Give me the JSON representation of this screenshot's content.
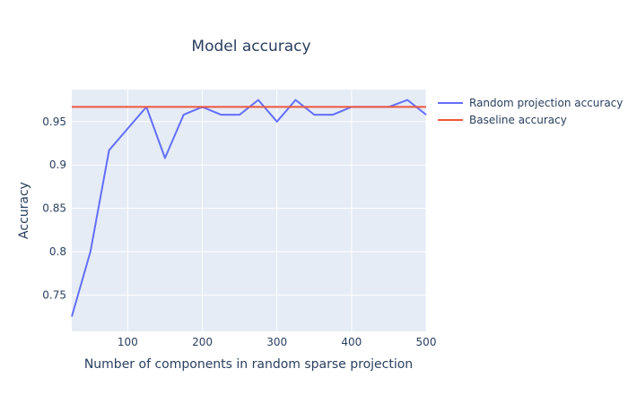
{
  "chart_data": {
    "type": "line",
    "title": "Model accuracy",
    "xlabel": "Number of components in random sparse projection",
    "ylabel": "Accuracy",
    "xlim": [
      25,
      500
    ],
    "ylim": [
      0.708,
      0.987
    ],
    "x_ticks": [
      100,
      200,
      300,
      400,
      500
    ],
    "y_ticks": [
      0.75,
      0.8,
      0.85,
      0.9,
      0.95
    ],
    "x_tick_labels": [
      "100",
      "200",
      "300",
      "400",
      "500"
    ],
    "y_tick_labels": [
      "0.75",
      "0.8",
      "0.85",
      "0.9",
      "0.95"
    ],
    "grid": true,
    "legend_position": "top-right",
    "series": [
      {
        "name": "Random projection accuracy",
        "color": "#636efa",
        "x": [
          25,
          50,
          75,
          100,
          125,
          150,
          175,
          200,
          225,
          250,
          275,
          300,
          325,
          350,
          375,
          400,
          425,
          450,
          475,
          500
        ],
        "y": [
          0.725,
          0.8,
          0.917,
          0.942,
          0.967,
          0.908,
          0.958,
          0.967,
          0.958,
          0.958,
          0.975,
          0.95,
          0.975,
          0.958,
          0.958,
          0.967,
          0.967,
          0.967,
          0.975,
          0.958
        ]
      },
      {
        "name": "Baseline accuracy",
        "color": "#ef553b",
        "x": [
          25,
          500
        ],
        "y": [
          0.967,
          0.967
        ]
      }
    ]
  }
}
